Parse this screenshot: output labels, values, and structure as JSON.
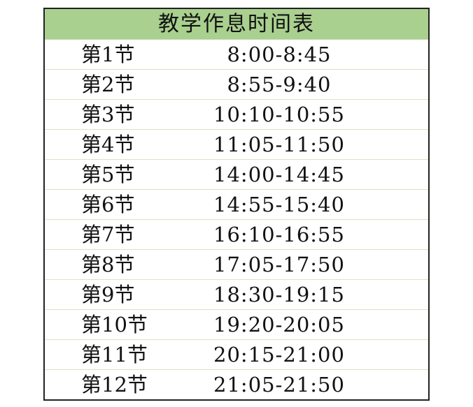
{
  "title": "教学作息时间表",
  "rows": [
    {
      "period": "第1节",
      "time": "8:00-8:45"
    },
    {
      "period": "第2节",
      "time": "8:55-9:40"
    },
    {
      "period": "第3节",
      "time": "10:10-10:55"
    },
    {
      "period": "第4节",
      "time": "11:05-11:50"
    },
    {
      "period": "第5节",
      "time": "14:00-14:45"
    },
    {
      "period": "第6节",
      "time": "14:55-15:40"
    },
    {
      "period": "第7节",
      "time": "16:10-16:55"
    },
    {
      "period": "第8节",
      "time": "17:05-17:50"
    },
    {
      "period": "第9节",
      "time": "18:30-19:15"
    },
    {
      "period": "第10节",
      "time": "19:20-20:05"
    },
    {
      "period": "第11节",
      "time": "20:15-21:00"
    },
    {
      "period": "第12节",
      "time": "21:05-21:50"
    }
  ],
  "colors": {
    "header_bg": "#a9d08e",
    "border": "#222222"
  }
}
